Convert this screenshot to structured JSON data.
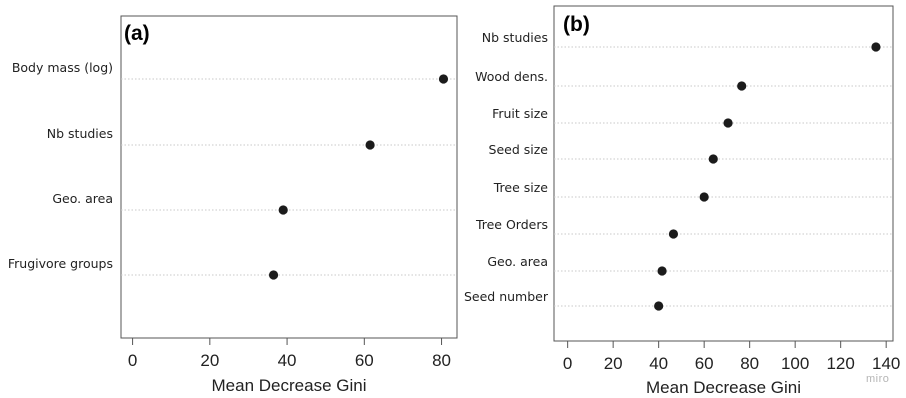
{
  "chart_data": [
    {
      "type": "scatter",
      "panel_label": "(a)",
      "xlabel": "Mean Decrease Gini",
      "ylabel": "",
      "xlim": [
        -3,
        84
      ],
      "xticks": [
        0,
        20,
        40,
        60,
        80
      ],
      "grid": "dotted horizontal per category",
      "categories": [
        "Body mass (log)",
        "Nb studies",
        "Geo. area",
        "Frugivore groups"
      ],
      "values": [
        80.5,
        61.5,
        39.0,
        36.5
      ]
    },
    {
      "type": "scatter",
      "panel_label": "(b)",
      "xlabel": "Mean Decrease Gini",
      "ylabel": "",
      "xlim": [
        -6,
        143
      ],
      "xticks": [
        0,
        20,
        40,
        60,
        80,
        100,
        120,
        140
      ],
      "grid": "dotted horizontal per category",
      "categories": [
        "Nb studies",
        "Wood dens.",
        "Fruit size",
        "Seed size",
        "Tree size",
        "Tree Orders",
        "Geo. area",
        "Seed number"
      ],
      "values": [
        135.5,
        76.5,
        70.5,
        64.0,
        60.0,
        46.5,
        41.5,
        40.0
      ]
    }
  ],
  "watermark": "miro"
}
